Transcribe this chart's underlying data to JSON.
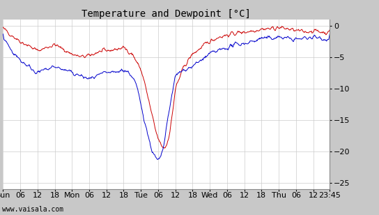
{
  "title": "Temperature and Dewpoint [°C]",
  "xlim_hours": [
    0,
    113.75
  ],
  "ylim": [
    -26,
    1
  ],
  "yticks": [
    0,
    -5,
    -10,
    -15,
    -20,
    -25
  ],
  "xtick_positions": [
    0,
    6,
    12,
    18,
    24,
    30,
    36,
    42,
    48,
    54,
    60,
    66,
    72,
    78,
    84,
    90,
    96,
    102,
    108,
    113.75
  ],
  "xtick_labels": [
    "Sun",
    "06",
    "12",
    "18",
    "Mon",
    "06",
    "12",
    "18",
    "Tue",
    "06",
    "12",
    "18",
    "Wed",
    "06",
    "12",
    "18",
    "Thu",
    "06",
    "12",
    "23:45"
  ],
  "temp_color": "#cc0000",
  "dewp_color": "#0000cc",
  "background_color": "#ffffff",
  "grid_color": "#cccccc",
  "fig_background": "#c8c8c8",
  "watermark": "www.vaisala.com",
  "title_fontsize": 10,
  "label_fontsize": 8,
  "temp_keypoints_x": [
    0,
    1,
    3,
    6,
    9,
    12,
    15,
    18,
    21,
    24,
    27,
    30,
    33,
    36,
    39,
    42,
    45,
    48,
    49,
    50,
    51,
    52,
    53,
    54,
    55,
    56,
    57,
    58,
    59,
    60,
    63,
    66,
    69,
    72,
    75,
    78,
    81,
    84,
    87,
    90,
    93,
    96,
    99,
    102,
    105,
    108,
    111,
    113.75
  ],
  "temp_keypoints_y": [
    -0.5,
    -0.8,
    -1.5,
    -2.5,
    -3.2,
    -4.0,
    -3.5,
    -3.0,
    -3.8,
    -4.5,
    -5.0,
    -4.8,
    -4.2,
    -4.0,
    -3.8,
    -3.5,
    -4.5,
    -7.0,
    -8.5,
    -10.5,
    -12.5,
    -14.5,
    -16.5,
    -18.0,
    -19.0,
    -19.5,
    -19.0,
    -17.0,
    -14.0,
    -10.0,
    -6.5,
    -4.5,
    -3.5,
    -2.5,
    -1.8,
    -1.5,
    -1.2,
    -1.0,
    -0.8,
    -0.5,
    -0.5,
    -0.3,
    -0.5,
    -0.8,
    -1.0,
    -0.8,
    -1.0,
    -1.2
  ],
  "dewp_keypoints_x": [
    0,
    1,
    3,
    6,
    9,
    12,
    15,
    18,
    21,
    24,
    27,
    30,
    33,
    36,
    39,
    42,
    44,
    46,
    47,
    48,
    49,
    50,
    51,
    52,
    53,
    54,
    55,
    56,
    57,
    58,
    59,
    60,
    63,
    66,
    69,
    72,
    75,
    78,
    81,
    84,
    87,
    90,
    93,
    96,
    99,
    102,
    105,
    108,
    111,
    113.75
  ],
  "dewp_keypoints_y": [
    -2.0,
    -2.5,
    -4.0,
    -5.5,
    -6.5,
    -7.5,
    -7.0,
    -6.5,
    -7.0,
    -7.5,
    -8.0,
    -8.5,
    -8.0,
    -7.5,
    -7.5,
    -7.0,
    -7.5,
    -9.0,
    -10.5,
    -12.5,
    -14.5,
    -16.5,
    -18.5,
    -20.0,
    -21.0,
    -21.5,
    -21.0,
    -19.0,
    -16.0,
    -13.0,
    -10.5,
    -8.0,
    -7.0,
    -6.5,
    -5.5,
    -4.5,
    -4.0,
    -3.5,
    -3.0,
    -2.8,
    -2.5,
    -2.0,
    -2.0,
    -1.8,
    -2.0,
    -2.2,
    -2.0,
    -1.8,
    -2.0,
    -2.2
  ]
}
